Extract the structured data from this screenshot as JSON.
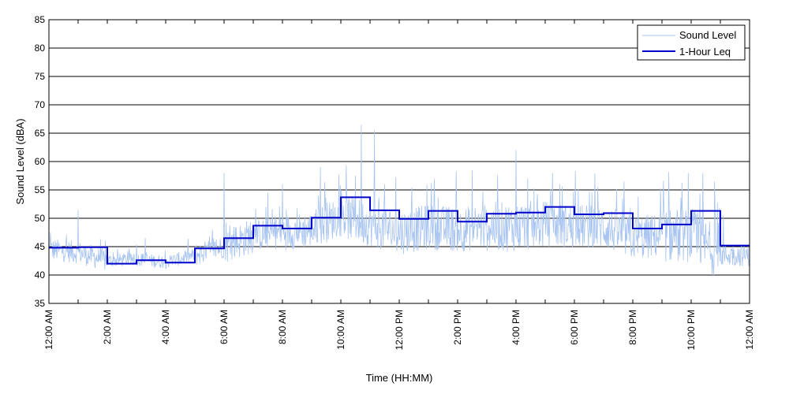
{
  "chart_data": {
    "type": "line",
    "xlabel": "Time (HH:MM)",
    "ylabel": "Sound Level (dBA)",
    "ylim": [
      35,
      85
    ],
    "xlim_hours": [
      0,
      24
    ],
    "y_ticks": [
      35,
      40,
      45,
      50,
      55,
      60,
      65,
      70,
      75,
      80,
      85
    ],
    "x_tick_hours": [
      0,
      2,
      4,
      6,
      8,
      10,
      12,
      14,
      16,
      18,
      20,
      22,
      24
    ],
    "x_tick_labels": [
      "12:00 AM",
      "2:00 AM",
      "4:00 AM",
      "6:00 AM",
      "8:00 AM",
      "10:00 AM",
      "12:00 PM",
      "2:00 PM",
      "4:00 PM",
      "6:00 PM",
      "8:00 PM",
      "10:00 PM",
      "12:00 AM"
    ],
    "grid": "horizontal",
    "legend_position": "top-right",
    "series": [
      {
        "name": "Sound Level",
        "color": "#a8c4f0",
        "style": "noisy",
        "hourly_base": [
          44.5,
          44.0,
          42.5,
          42.8,
          42.3,
          43.5,
          45.0,
          47.0,
          47.5,
          48.0,
          50.5,
          49.0,
          47.5,
          48.5,
          48.0,
          48.5,
          48.5,
          49.0,
          48.5,
          48.5,
          46.5,
          47.0,
          47.0,
          43.5
        ],
        "hourly_spread": [
          2.5,
          2.5,
          1.5,
          1.5,
          1.5,
          2.5,
          4.0,
          3.5,
          4.0,
          4.5,
          5.0,
          5.0,
          5.0,
          5.0,
          5.0,
          5.5,
          5.5,
          5.0,
          5.0,
          5.0,
          5.0,
          6.0,
          6.0,
          2.5
        ],
        "peaks": [
          {
            "x": 0.05,
            "y": 47.5
          },
          {
            "x": 1.0,
            "y": 51.5
          },
          {
            "x": 2.2,
            "y": 44.0
          },
          {
            "x": 3.3,
            "y": 46.5
          },
          {
            "x": 5.6,
            "y": 48.0
          },
          {
            "x": 6.0,
            "y": 58.0
          },
          {
            "x": 7.5,
            "y": 54.5
          },
          {
            "x": 8.0,
            "y": 56.0
          },
          {
            "x": 9.3,
            "y": 59.0
          },
          {
            "x": 10.5,
            "y": 57.5
          },
          {
            "x": 10.7,
            "y": 66.5
          },
          {
            "x": 11.15,
            "y": 65.5
          },
          {
            "x": 11.5,
            "y": 56.0
          },
          {
            "x": 13.2,
            "y": 57.0
          },
          {
            "x": 14.5,
            "y": 58.5
          },
          {
            "x": 16.0,
            "y": 62.0
          },
          {
            "x": 16.4,
            "y": 57.0
          },
          {
            "x": 17.5,
            "y": 56.0
          },
          {
            "x": 18.8,
            "y": 55.5
          },
          {
            "x": 19.7,
            "y": 56.5
          },
          {
            "x": 21.9,
            "y": 58.0
          },
          {
            "x": 22.4,
            "y": 58.0
          },
          {
            "x": 22.8,
            "y": 56.5
          },
          {
            "x": 23.1,
            "y": 50.5
          }
        ]
      },
      {
        "name": "1-Hour Leq",
        "color": "#0000cc",
        "style": "step",
        "hours": [
          0,
          1,
          2,
          3,
          4,
          5,
          6,
          7,
          8,
          9,
          10,
          11,
          12,
          13,
          14,
          15,
          16,
          17,
          18,
          19,
          20,
          21,
          22,
          23
        ],
        "values": [
          44.8,
          44.9,
          42.0,
          42.6,
          42.2,
          44.7,
          46.5,
          48.7,
          48.2,
          50.1,
          53.7,
          51.4,
          49.9,
          51.3,
          49.4,
          50.8,
          51.0,
          52.0,
          50.7,
          50.9,
          48.2,
          48.9,
          51.3,
          45.2
        ]
      }
    ]
  }
}
